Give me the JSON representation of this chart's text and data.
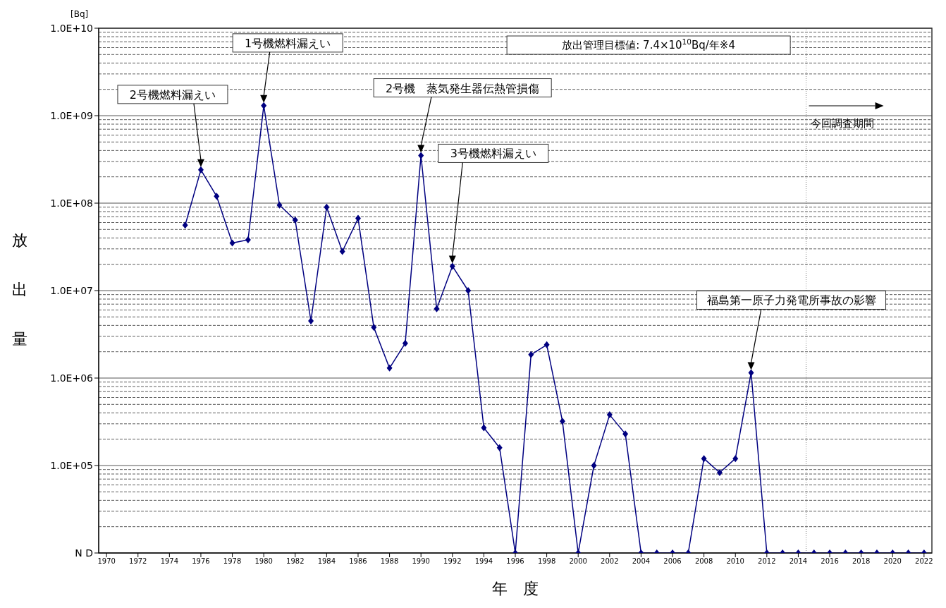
{
  "chart_data": {
    "type": "line",
    "ylabel": "放出量",
    "xlabel": "年　度",
    "x": [
      1975,
      1976,
      1977,
      1978,
      1979,
      1980,
      1981,
      1982,
      1983,
      1984,
      1985,
      1986,
      1987,
      1988,
      1989,
      1990,
      1991,
      1992,
      1993,
      1994,
      1995,
      1996,
      1997,
      1998,
      1999,
      2000,
      2001,
      2002,
      2003,
      2004,
      2005,
      2006,
      2007,
      2008,
      2009,
      2010,
      2011,
      2012,
      2013,
      2014,
      2015,
      2016,
      2017,
      2018,
      2019,
      2020,
      2021,
      2022
    ],
    "series": [
      {
        "color": "#000080",
        "values": [
          56000000,
          240000000,
          120000000,
          35000000,
          38000000,
          1300000000,
          95000000,
          64000000,
          4500000,
          90000000,
          28000000,
          67000000,
          3800000,
          1300000,
          2500000,
          350000000,
          6200000,
          19000000,
          10000000,
          270000,
          160000,
          10000,
          1850000,
          2400000,
          320000,
          10000,
          100000,
          380000,
          230000,
          10000,
          10000,
          10000,
          10000,
          120000,
          83000,
          120000,
          1150000,
          10000,
          10000,
          10000,
          10000,
          10000,
          10000,
          10000,
          10000,
          10000,
          10000,
          10000
        ]
      }
    ],
    "log": "y",
    "ylim": [
      10000,
      10000000000
    ],
    "yticks": [
      {
        "value": 10000,
        "label": "N D"
      },
      {
        "value": 100000,
        "label": "1.0E+05"
      },
      {
        "value": 1000000,
        "label": "1.0E+06"
      },
      {
        "value": 10000000,
        "label": "1.0E+07"
      },
      {
        "value": 100000000,
        "label": "1.0E+08"
      },
      {
        "value": 1000000000,
        "label": "1.0E+09"
      },
      {
        "value": 10000000000,
        "label": "1.0E+10"
      }
    ],
    "xlim": [
      1969.5,
      2022.5
    ],
    "xticks": [
      1970,
      1972,
      1974,
      1976,
      1978,
      1980,
      1982,
      1984,
      1986,
      1988,
      1990,
      1992,
      1994,
      1996,
      1998,
      2000,
      2002,
      2004,
      2006,
      2008,
      2010,
      2012,
      2014,
      2016,
      2018,
      2020,
      2022
    ],
    "grid": "y",
    "marker": "diamond",
    "line_style": "solid",
    "legend": false,
    "ref_lines": [
      {
        "axis": "x",
        "value": 2014.5,
        "label": "今回調査期間",
        "line_style": "dotted",
        "color": "#808080"
      }
    ],
    "annotations": [
      "[Bq]",
      "2号機燃料漏えい",
      "1号機燃料漏えい",
      "2号機　蒸気発生器伝熱管損傷",
      "3号機燃料漏えい",
      "福島第一原子力発電所事故の影響",
      "放出管理目標値: 7.4×10$^{10}$Bq/年※4"
    ]
  }
}
